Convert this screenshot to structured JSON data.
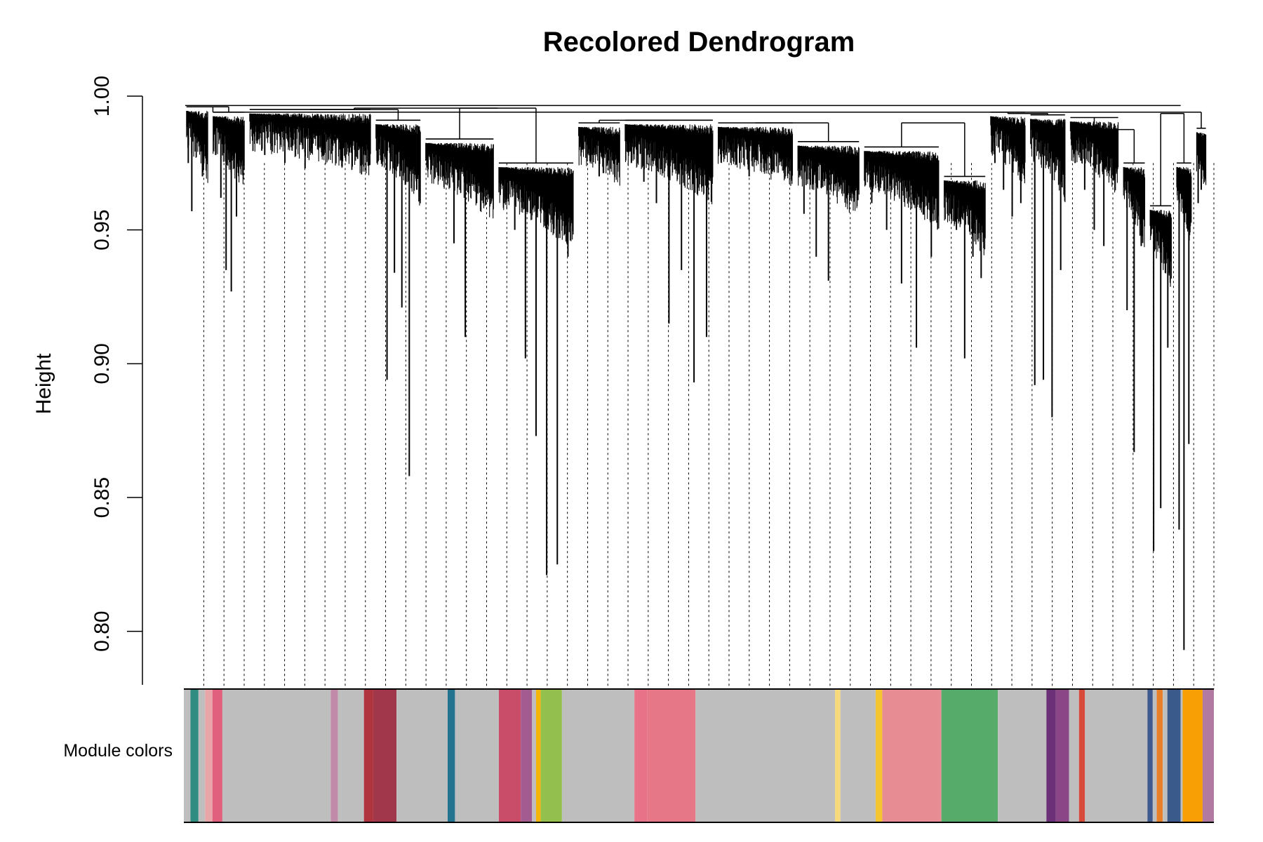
{
  "chart_data": {
    "type": "dendrogram",
    "title": "Recolored Dendrogram",
    "ylabel": "Height",
    "ylim": [
      0.78,
      1.0
    ],
    "y_ticks": [
      0.8,
      0.85,
      0.9,
      0.95,
      1.0
    ],
    "y_tick_labels": [
      "0.80",
      "0.85",
      "0.90",
      "0.95",
      "1.00"
    ],
    "color_band_label": "Module colors",
    "clusters": [
      {
        "start": 0.0,
        "end": 0.04,
        "join": 0.996,
        "tips": [
          0.975,
          0.957,
          0.988,
          0.983,
          0.97,
          0.992
        ]
      },
      {
        "start": 0.04,
        "end": 0.095,
        "join": 0.994,
        "tips": [
          0.978,
          0.962,
          0.935,
          0.927,
          0.955,
          0.985
        ]
      },
      {
        "start": 0.095,
        "end": 0.285,
        "join": 0.995,
        "tips": [
          0.985,
          0.978,
          0.986,
          0.975,
          0.982,
          0.973,
          0.984,
          0.98,
          0.983,
          0.977,
          0.986,
          0.981
        ]
      },
      {
        "start": 0.285,
        "end": 0.36,
        "join": 0.991,
        "tips": [
          0.985,
          0.894,
          0.934,
          0.921,
          0.858,
          0.965
        ]
      },
      {
        "start": 0.36,
        "end": 0.47,
        "join": 0.984,
        "tips": [
          0.975,
          0.97,
          0.945,
          0.91,
          0.96,
          0.966
        ]
      },
      {
        "start": 0.47,
        "end": 0.59,
        "join": 0.975,
        "tips": [
          0.96,
          0.95,
          0.902,
          0.873,
          0.821,
          0.825,
          0.94
        ]
      },
      {
        "start": 0.59,
        "end": 0.66,
        "join": 0.99,
        "tips": [
          0.98,
          0.976,
          0.97,
          0.975,
          0.985
        ]
      },
      {
        "start": 0.66,
        "end": 0.8,
        "join": 0.991,
        "tips": [
          0.975,
          0.968,
          0.96,
          0.915,
          0.935,
          0.893,
          0.91
        ]
      },
      {
        "start": 0.8,
        "end": 0.92,
        "join": 0.99,
        "tips": [
          0.98,
          0.976,
          0.97,
          0.975,
          0.982,
          0.978
        ]
      },
      {
        "start": 0.92,
        "end": 1.02,
        "join": 0.983,
        "tips": [
          0.956,
          0.94,
          0.931,
          0.972,
          0.965
        ]
      },
      {
        "start": 1.02,
        "end": 1.14,
        "join": 0.981,
        "tips": [
          0.96,
          0.95,
          0.93,
          0.906,
          0.94
        ]
      },
      {
        "start": 1.14,
        "end": 1.21,
        "join": 0.97,
        "tips": [
          0.965,
          0.95,
          0.902,
          0.94,
          0.932
        ]
      },
      {
        "start": 1.21,
        "end": 1.27,
        "join": 0.994,
        "tips": [
          0.975,
          0.965,
          0.955,
          0.96
        ]
      },
      {
        "start": 1.27,
        "end": 1.33,
        "join": 0.993,
        "tips": [
          0.892,
          0.894,
          0.88,
          0.935
        ]
      },
      {
        "start": 1.33,
        "end": 1.41,
        "join": 0.992,
        "tips": [
          0.975,
          0.965,
          0.95,
          0.944,
          0.97
        ]
      },
      {
        "start": 1.41,
        "end": 1.45,
        "join": 0.975,
        "tips": [
          0.92,
          0.867,
          0.944
        ]
      },
      {
        "start": 1.45,
        "end": 1.49,
        "join": 0.959,
        "tips": [
          0.83,
          0.846,
          0.906
        ]
      },
      {
        "start": 1.49,
        "end": 1.52,
        "join": 0.975,
        "tips": [
          0.838,
          0.793,
          0.87
        ]
      },
      {
        "start": 1.52,
        "end": 1.542,
        "join": 0.988,
        "tips": [
          0.96,
          0.965,
          0.97
        ]
      }
    ],
    "merges": [
      {
        "left": 0,
        "right": 1,
        "height": 0.996
      },
      {
        "left": 2,
        "right": 3,
        "height": 0.995
      },
      {
        "left": 4,
        "right": 5,
        "height": 0.9955
      },
      {
        "left": 6,
        "right": 7,
        "height": 0.991
      },
      {
        "left": 8,
        "right": 9,
        "height": 0.99
      },
      {
        "left": 10,
        "right": 11,
        "height": 0.99
      },
      {
        "left": 12,
        "right": 13,
        "height": 0.9935
      },
      {
        "left": 14,
        "right": 15,
        "height": 0.9875
      },
      {
        "left": 16,
        "right": 17,
        "height": 0.9935
      },
      {
        "left": 18,
        "right": 19,
        "height": 0.994
      },
      {
        "left": 20,
        "right": 21,
        "height": 0.9955
      }
    ],
    "module_colors": [
      {
        "from": 0.0,
        "to": 0.01,
        "color": "#bebebe"
      },
      {
        "from": 0.01,
        "to": 0.022,
        "color": "#2e8c81"
      },
      {
        "from": 0.022,
        "to": 0.032,
        "color": "#bebebe"
      },
      {
        "from": 0.032,
        "to": 0.043,
        "color": "#e8a5a8"
      },
      {
        "from": 0.043,
        "to": 0.058,
        "color": "#e0607e"
      },
      {
        "from": 0.058,
        "to": 0.221,
        "color": "#bebebe"
      },
      {
        "from": 0.221,
        "to": 0.232,
        "color": "#c08aa8"
      },
      {
        "from": 0.232,
        "to": 0.271,
        "color": "#bebebe"
      },
      {
        "from": 0.271,
        "to": 0.285,
        "color": "#b0343e"
      },
      {
        "from": 0.285,
        "to": 0.32,
        "color": "#a1374a"
      },
      {
        "from": 0.32,
        "to": 0.397,
        "color": "#bebebe"
      },
      {
        "from": 0.397,
        "to": 0.408,
        "color": "#22748f"
      },
      {
        "from": 0.408,
        "to": 0.474,
        "color": "#bebebe"
      },
      {
        "from": 0.474,
        "to": 0.507,
        "color": "#c94c68"
      },
      {
        "from": 0.507,
        "to": 0.524,
        "color": "#a35c8f"
      },
      {
        "from": 0.524,
        "to": 0.53,
        "color": "#bebebe"
      },
      {
        "from": 0.53,
        "to": 0.537,
        "color": "#f5b40a"
      },
      {
        "from": 0.537,
        "to": 0.569,
        "color": "#93bf4d"
      },
      {
        "from": 0.569,
        "to": 0.678,
        "color": "#bebebe"
      },
      {
        "from": 0.678,
        "to": 0.697,
        "color": "#e87388"
      },
      {
        "from": 0.697,
        "to": 0.77,
        "color": "#e57787"
      },
      {
        "from": 0.77,
        "to": 0.98,
        "color": "#bebebe"
      },
      {
        "from": 0.98,
        "to": 0.988,
        "color": "#f5d97a"
      },
      {
        "from": 0.988,
        "to": 1.041,
        "color": "#bebebe"
      },
      {
        "from": 1.041,
        "to": 1.051,
        "color": "#f5c431"
      },
      {
        "from": 1.051,
        "to": 1.14,
        "color": "#e88c94"
      },
      {
        "from": 1.14,
        "to": 1.225,
        "color": "#56ab6b"
      },
      {
        "from": 1.225,
        "to": 1.298,
        "color": "#bebebe"
      },
      {
        "from": 1.298,
        "to": 1.312,
        "color": "#6c3078"
      },
      {
        "from": 1.312,
        "to": 1.332,
        "color": "#8a4686"
      },
      {
        "from": 1.332,
        "to": 1.347,
        "color": "#bebebe"
      },
      {
        "from": 1.347,
        "to": 1.356,
        "color": "#d74a3a"
      },
      {
        "from": 1.356,
        "to": 1.45,
        "color": "#bebebe"
      },
      {
        "from": 1.45,
        "to": 1.458,
        "color": "#3f5a8e"
      },
      {
        "from": 1.458,
        "to": 1.464,
        "color": "#bebebe"
      },
      {
        "from": 1.464,
        "to": 1.473,
        "color": "#e8802b"
      },
      {
        "from": 1.473,
        "to": 1.48,
        "color": "#bebebe"
      },
      {
        "from": 1.48,
        "to": 1.5,
        "color": "#3a5a8c"
      },
      {
        "from": 1.5,
        "to": 1.503,
        "color": "#bebebe"
      },
      {
        "from": 1.503,
        "to": 1.533,
        "color": "#f79f05"
      },
      {
        "from": 1.533,
        "to": 1.55,
        "color": "#b07aa1"
      }
    ]
  }
}
